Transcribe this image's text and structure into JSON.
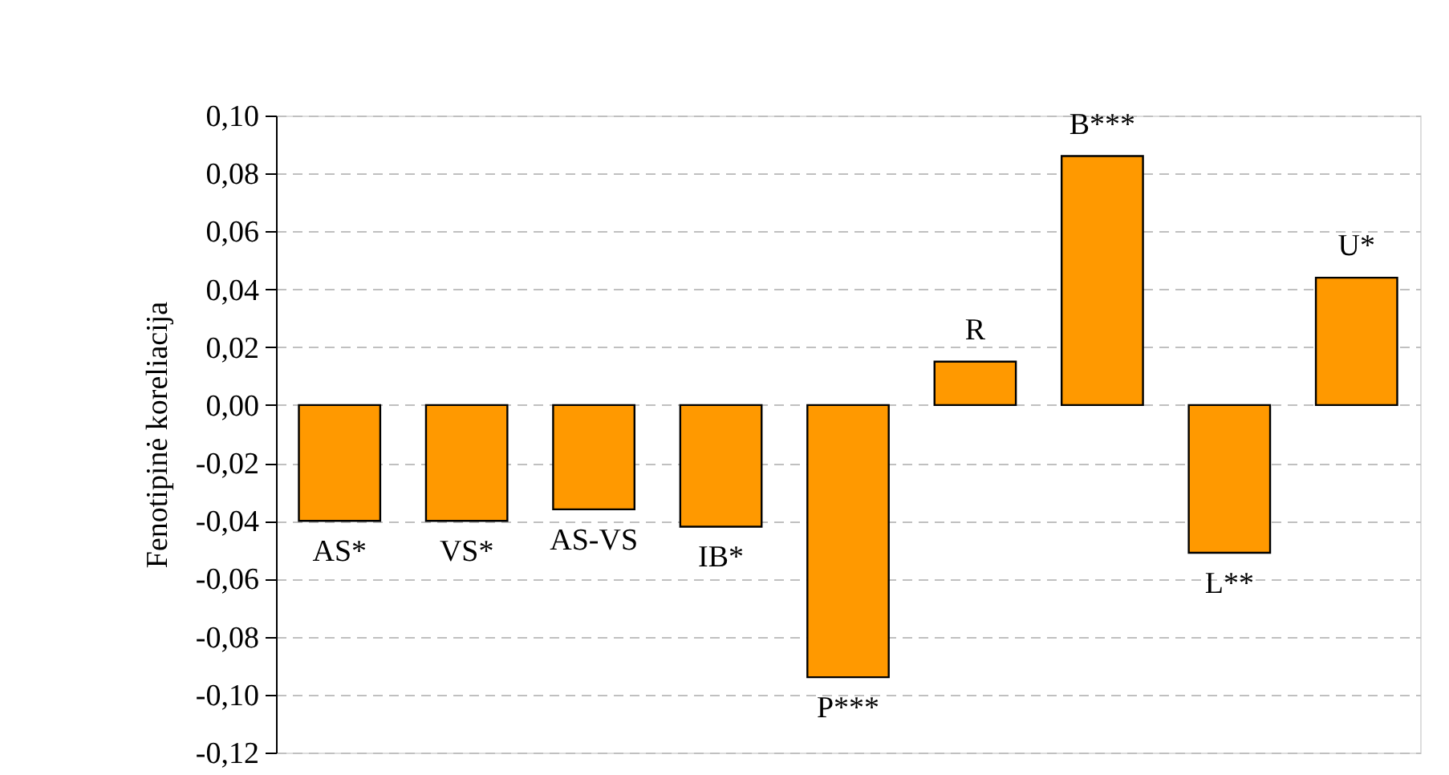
{
  "chart_data": {
    "type": "bar",
    "ylabel": "Fenotipinė koreliacija",
    "categories": [
      "AS*",
      "VS*",
      "AS-VS",
      "IB*",
      "P***",
      "R",
      "B***",
      "L**",
      "U*"
    ],
    "values": [
      -0.04,
      -0.04,
      -0.036,
      -0.042,
      -0.094,
      0.015,
      0.086,
      -0.051,
      0.044
    ],
    "color": "#ff9900",
    "ylim": [
      -0.12,
      0.1
    ],
    "yticks": [
      {
        "value": -0.12,
        "label": "-0,12"
      },
      {
        "value": -0.1,
        "label": "-0,10"
      },
      {
        "value": -0.08,
        "label": "-0,08"
      },
      {
        "value": -0.06,
        "label": "-0,06"
      },
      {
        "value": -0.04,
        "label": "-0,04"
      },
      {
        "value": -0.02,
        "label": "-0,02"
      },
      {
        "value": 0.0,
        "label": "0,00"
      },
      {
        "value": 0.02,
        "label": "0,02"
      },
      {
        "value": 0.04,
        "label": "0,04"
      },
      {
        "value": 0.06,
        "label": "0,06"
      },
      {
        "value": 0.08,
        "label": "0,08"
      },
      {
        "value": 0.1,
        "label": "0,10"
      }
    ],
    "grid": "y",
    "tick_labels": "y"
  }
}
